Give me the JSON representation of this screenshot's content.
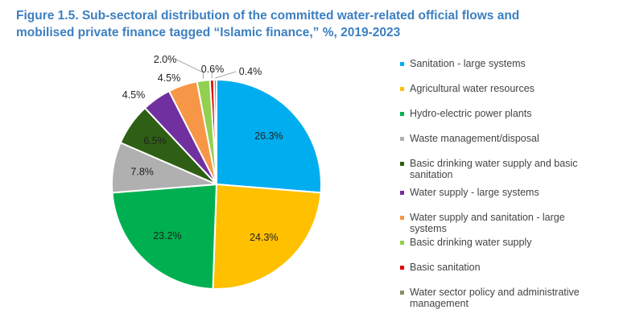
{
  "chart_data": {
    "type": "pie",
    "title": "Figure 1.5. Sub-sectoral distribution of the committed water-related official flows and mobilised private finance tagged “Islamic finance,” %, 2019-2023",
    "unit": "%",
    "legend_position": "right",
    "slices": [
      {
        "label": "Sanitation - large systems",
        "value": 26.3,
        "display": "26.3%",
        "color": "#00adef"
      },
      {
        "label": "Agricultural water resources",
        "value": 24.3,
        "display": "24.3%",
        "color": "#ffc000"
      },
      {
        "label": "Hydro-electric power plants",
        "value": 23.2,
        "display": "23.2%",
        "color": "#00b050"
      },
      {
        "label": "Waste management/disposal",
        "value": 7.8,
        "display": "7.8%",
        "color": "#b0b0b0"
      },
      {
        "label": "Basic drinking water supply and basic sanitation",
        "value": 6.5,
        "display": "6.5%",
        "color": "#2e5f14"
      },
      {
        "label": "Water supply - large systems",
        "value": 4.5,
        "display": "4.5%",
        "color": "#7030a0"
      },
      {
        "label": "Water supply and sanitation - large systems",
        "value": 4.5,
        "display": "4.5%",
        "color": "#f79646"
      },
      {
        "label": "Basic drinking water supply",
        "value": 2.0,
        "display": "2.0%",
        "color": "#92d050"
      },
      {
        "label": "Basic sanitation",
        "value": 0.6,
        "display": "0.6%",
        "color": "#e00000"
      },
      {
        "label": "Water sector policy and administrative management",
        "value": 0.4,
        "display": "0.4%",
        "color": "#8c8c64"
      }
    ]
  }
}
